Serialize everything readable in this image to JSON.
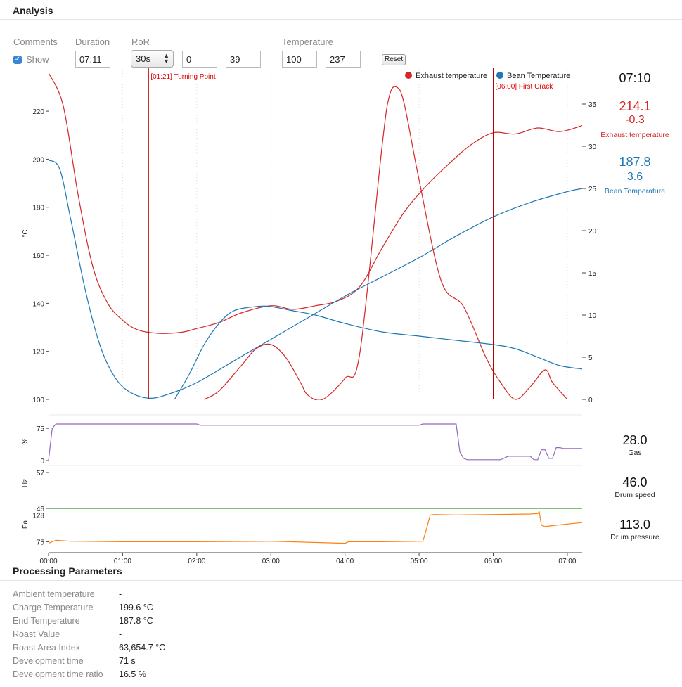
{
  "header": {
    "title": "Analysis"
  },
  "controls": {
    "comments_label": "Comments",
    "show_label": "Show",
    "show_checked": true,
    "duration_label": "Duration",
    "duration_value": "07:11",
    "ror_label": "RoR",
    "ror_select": "30s",
    "ror_min": "0",
    "ror_max": "39",
    "temperature_label": "Temperature",
    "temp_min": "100",
    "temp_max": "237",
    "reset_label": "Reset"
  },
  "legend": {
    "exhaust": "Exhaust temperature",
    "bean": "Bean Temperature"
  },
  "events": [
    {
      "label": "[01:21] Turning Point",
      "time": 1.35
    },
    {
      "label": "[06:00] First Crack",
      "time": 6.0
    }
  ],
  "readouts": {
    "time": "07:10",
    "exhaust_value": "214.1",
    "exhaust_ror": "-0.3",
    "exhaust_label": "Exhaust temperature",
    "bean_value": "187.8",
    "bean_ror": "3.6",
    "bean_label": "Bean Temperature",
    "gas_value": "28.0",
    "gas_label": "Gas",
    "drum_speed_value": "46.0",
    "drum_speed_label": "Drum speed",
    "drum_pressure_value": "113.0",
    "drum_pressure_label": "Drum pressure"
  },
  "processing": {
    "title": "Processing Parameters",
    "rows": [
      {
        "label": "Ambient temperature",
        "value": "-"
      },
      {
        "label": "Charge Temperature",
        "value": "199.6 °C"
      },
      {
        "label": "End Temperature",
        "value": "187.8 °C"
      },
      {
        "label": "Roast Value",
        "value": "-"
      },
      {
        "label": "Roast Area Index",
        "value": "63,654.7 °C"
      },
      {
        "label": "Development time",
        "value": "71 s"
      },
      {
        "label": "Development time ratio",
        "value": "16.5 %"
      }
    ]
  },
  "colors": {
    "exhaust": "#d62728",
    "bean": "#1f77b4",
    "gas": "#9467bd",
    "drum_speed": "#2ca02c",
    "drum_pressure": "#ff7f0e"
  },
  "chart_data": [
    {
      "type": "line",
      "xlabel": "",
      "ylabel": "°C",
      "xlim": [
        0,
        7.2
      ],
      "ylim": [
        100,
        237
      ],
      "y2lim": [
        0,
        39
      ],
      "x_ticks": [
        "00:00",
        "01:00",
        "02:00",
        "03:00",
        "04:00",
        "05:00",
        "06:00",
        "07:00"
      ],
      "y_ticks": [
        100,
        120,
        140,
        160,
        180,
        200,
        220
      ],
      "y2_ticks": [
        0,
        5,
        10,
        15,
        20,
        25,
        30,
        35
      ],
      "series": [
        {
          "name": "Exhaust temperature",
          "color": "#d62728",
          "axis": "left",
          "x": [
            0,
            0.2,
            0.4,
            0.6,
            0.8,
            1.0,
            1.2,
            1.5,
            1.8,
            2.0,
            2.3,
            2.6,
            3.0,
            3.3,
            3.6,
            3.9,
            4.2,
            4.5,
            4.8,
            5.1,
            5.4,
            5.7,
            6.0,
            6.3,
            6.6,
            6.9,
            7.2
          ],
          "y": [
            236,
            222,
            185,
            155,
            140,
            133,
            129,
            127.5,
            128,
            129.5,
            132,
            136,
            139,
            137.5,
            139,
            141,
            147,
            163,
            178,
            189,
            198,
            206,
            211,
            210.5,
            213,
            211.5,
            214
          ]
        },
        {
          "name": "Bean Temperature",
          "color": "#1f77b4",
          "axis": "left",
          "x": [
            0,
            0.15,
            0.3,
            0.5,
            0.7,
            0.9,
            1.1,
            1.35,
            1.6,
            2.0,
            2.5,
            3.0,
            3.5,
            4.0,
            4.5,
            5.0,
            5.5,
            6.0,
            6.5,
            7.0,
            7.2
          ],
          "y": [
            199.6,
            196,
            175,
            145,
            122,
            109,
            103,
            100.5,
            102,
            107,
            116,
            125,
            134,
            143,
            151,
            159,
            168,
            176,
            182,
            186.5,
            187.8
          ]
        },
        {
          "name": "Exhaust temperature RoR",
          "color": "#d62728",
          "axis": "right",
          "x": [
            2.1,
            2.3,
            2.6,
            2.8,
            3.0,
            3.2,
            3.4,
            3.5,
            3.7,
            4.0,
            4.2,
            4.5,
            4.6,
            4.7,
            4.8,
            5.0,
            5.3,
            5.6,
            5.9,
            6.1,
            6.3,
            6.5,
            6.7,
            6.8,
            7.0
          ],
          "y": [
            0,
            1,
            4,
            6,
            6.5,
            5,
            2,
            0.5,
            0,
            2.5,
            5.5,
            30,
            36,
            37,
            35,
            26,
            14,
            11,
            5,
            2,
            0,
            1.5,
            3.5,
            2,
            0
          ]
        },
        {
          "name": "Bean Temperature RoR",
          "color": "#1f77b4",
          "axis": "right",
          "x": [
            1.7,
            1.9,
            2.1,
            2.3,
            2.5,
            2.8,
            3.0,
            3.3,
            3.6,
            4.0,
            4.5,
            5.0,
            5.5,
            6.0,
            6.3,
            6.6,
            6.9,
            7.2
          ],
          "y": [
            0,
            3,
            6.5,
            9,
            10.5,
            11,
            11,
            10.5,
            10,
            9,
            8,
            7.5,
            7,
            6.5,
            6,
            5,
            4,
            3.6
          ]
        }
      ]
    },
    {
      "type": "line",
      "ylabel": "%",
      "ylim": [
        0,
        85
      ],
      "y_ticks": [
        0,
        75
      ],
      "series": [
        {
          "name": "Gas",
          "color": "#9467bd",
          "x": [
            0,
            0.05,
            0.1,
            0.15,
            2.0,
            2.05,
            5.0,
            5.05,
            5.5,
            5.55,
            5.6,
            5.65,
            6.0,
            6.1,
            6.2,
            6.3,
            6.5,
            6.55,
            6.6,
            6.65,
            6.7,
            6.75,
            6.8,
            6.85,
            6.9,
            6.95,
            7.2
          ],
          "y": [
            0,
            75,
            85,
            85,
            85,
            82,
            82,
            85,
            85,
            20,
            5,
            2,
            2,
            2,
            10,
            10,
            10,
            2,
            2,
            25,
            25,
            5,
            5,
            30,
            30,
            28,
            28
          ]
        }
      ]
    },
    {
      "type": "line",
      "ylabel": "Hz",
      "ylim": [
        46,
        57
      ],
      "y_ticks": [
        46,
        57
      ],
      "series": [
        {
          "name": "Drum speed",
          "color": "#2ca02c",
          "x": [
            0,
            7.2
          ],
          "y": [
            46,
            46
          ]
        }
      ]
    },
    {
      "type": "line",
      "ylabel": "Pa",
      "ylim": [
        70,
        130
      ],
      "y_ticks": [
        75,
        128
      ],
      "series": [
        {
          "name": "Drum pressure",
          "color": "#ff7f0e",
          "x": [
            0,
            0.1,
            0.3,
            1.0,
            2.0,
            3.0,
            4.0,
            4.05,
            4.5,
            5.05,
            5.1,
            5.15,
            5.2,
            5.5,
            6.0,
            6.5,
            6.6,
            6.62,
            6.65,
            6.7,
            6.8,
            7.0,
            7.2
          ],
          "y": [
            72,
            78,
            76,
            75,
            75,
            76,
            72,
            75,
            75,
            76,
            100,
            128,
            129,
            128,
            129,
            130,
            131,
            135,
            108,
            105,
            107,
            110,
            113
          ]
        }
      ]
    }
  ]
}
